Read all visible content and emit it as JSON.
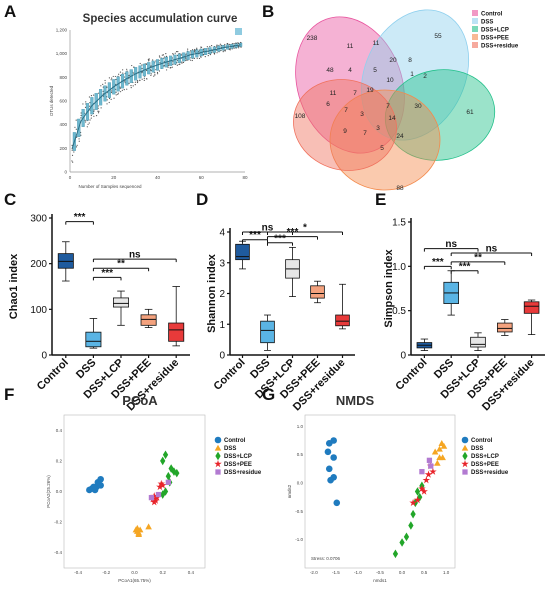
{
  "panel_labels": {
    "A": "A",
    "B": "B",
    "C": "C",
    "D": "D",
    "E": "E",
    "F": "F",
    "G": "G"
  },
  "colors": {
    "control": "#1f5b9e",
    "dss": "#5ab4e4",
    "lcp": "#e6e6e6",
    "pee": "#f4a27e",
    "residue": "#e83a3a",
    "venn_control": "#e8559f",
    "venn_dss": "#8fd0ee",
    "venn_lcp": "#22c08a",
    "venn_pee": "#f38a4c",
    "venn_residue": "#f0725e",
    "ord_control": "#1f7bbf",
    "ord_dss": "#f5a623",
    "ord_lcp": "#22a629",
    "ord_pee": "#e8232a",
    "ord_residue": "#b27ad1"
  },
  "chart_data": [
    {
      "id": "A",
      "type": "line",
      "title": "Species accumulation curve",
      "xlabel": "Number of Samples sequenced",
      "ylabel": "OTUs detected",
      "xlim": [
        0,
        80
      ],
      "ylim": [
        0,
        1200
      ],
      "xticks": [
        "0",
        "20",
        "40",
        "60",
        "80"
      ],
      "yticks": [
        "0",
        "200",
        "400",
        "600",
        "800",
        "1,000",
        "1,200"
      ],
      "x": [
        1,
        5,
        10,
        15,
        20,
        25,
        30,
        35,
        40,
        45,
        50,
        55,
        60,
        65,
        70,
        75,
        78
      ],
      "y": [
        200,
        430,
        560,
        650,
        720,
        780,
        830,
        870,
        905,
        935,
        960,
        990,
        1010,
        1030,
        1050,
        1065,
        1075
      ]
    },
    {
      "id": "B",
      "type": "venn",
      "sets": [
        "Control",
        "DSS",
        "DSS+LCP",
        "DSS+PEE",
        "DSS+residue"
      ],
      "regions": [
        "238",
        "55",
        "61",
        "88",
        "108",
        "11",
        "11",
        "20",
        "8",
        "1",
        "2",
        "48",
        "4",
        "5",
        "10",
        "30",
        "14",
        "24",
        "11",
        "7",
        "19",
        "6",
        "7",
        "3",
        "7",
        "3",
        "9",
        "7",
        "5"
      ]
    },
    {
      "id": "C",
      "type": "box",
      "ylabel": "Chao1 index",
      "ylim": [
        0,
        300
      ],
      "yticks": [
        "0",
        "100",
        "200",
        "300"
      ],
      "categories": [
        "Control",
        "DSS",
        "DSS+LCP",
        "DSS+PEE",
        "DSS+residue"
      ],
      "boxes": [
        {
          "min": 162,
          "q1": 190,
          "median": 205,
          "q3": 222,
          "max": 248
        },
        {
          "min": 15,
          "q1": 18,
          "median": 30,
          "q3": 50,
          "max": 80
        },
        {
          "min": 65,
          "q1": 105,
          "median": 113,
          "q3": 125,
          "max": 140
        },
        {
          "min": 60,
          "q1": 65,
          "median": 78,
          "q3": 88,
          "max": 100
        },
        {
          "min": 20,
          "q1": 30,
          "median": 55,
          "q3": 70,
          "max": 150
        }
      ],
      "significance": [
        {
          "from": 0,
          "to": 1,
          "label": "***",
          "value": 292
        },
        {
          "from": 1,
          "to": 2,
          "label": "***",
          "value": 170
        },
        {
          "from": 1,
          "to": 3,
          "label": "**",
          "value": 190
        },
        {
          "from": 1,
          "to": 4,
          "label": "ns",
          "value": 210
        }
      ]
    },
    {
      "id": "D",
      "type": "box",
      "ylabel": "Shannon index",
      "ylim": [
        0,
        4
      ],
      "yticks": [
        "0",
        "1",
        "2",
        "3",
        "4"
      ],
      "categories": [
        "Control",
        "DSS",
        "DSS+LCP",
        "DSS+PEE",
        "DSS+residue"
      ],
      "boxes": [
        {
          "min": 2.8,
          "q1": 3.1,
          "median": 3.2,
          "q3": 3.6,
          "max": 3.7
        },
        {
          "min": 0.15,
          "q1": 0.4,
          "median": 0.8,
          "q3": 1.1,
          "max": 1.3
        },
        {
          "min": 1.9,
          "q1": 2.5,
          "median": 2.8,
          "q3": 3.1,
          "max": 3.5
        },
        {
          "min": 1.7,
          "q1": 1.85,
          "median": 2.0,
          "q3": 2.25,
          "max": 2.4
        },
        {
          "min": 0.85,
          "q1": 0.95,
          "median": 1.1,
          "q3": 1.3,
          "max": 2.3
        }
      ],
      "significance": [
        {
          "from": 0,
          "to": 1,
          "label": "***",
          "value": 3.75
        },
        {
          "from": 1,
          "to": 2,
          "label": "***",
          "value": 3.65
        },
        {
          "from": 0,
          "to": 2,
          "label": "ns",
          "value": 4.0
        },
        {
          "from": 1,
          "to": 3,
          "label": "***",
          "value": 3.85
        },
        {
          "from": 1,
          "to": 4,
          "label": "*",
          "value": 4.0
        }
      ]
    },
    {
      "id": "E",
      "type": "box",
      "ylabel": "Simpson index",
      "ylim": [
        0,
        1.5
      ],
      "yticks": [
        "0",
        "0.5",
        "1.0",
        "1.5"
      ],
      "categories": [
        "Control",
        "DSS",
        "DSS+LCP",
        "DSS+PEE",
        "DSS+residue"
      ],
      "boxes": [
        {
          "min": 0.05,
          "q1": 0.08,
          "median": 0.11,
          "q3": 0.14,
          "max": 0.18
        },
        {
          "min": 0.45,
          "q1": 0.58,
          "median": 0.7,
          "q3": 0.82,
          "max": 0.95
        },
        {
          "min": 0.05,
          "q1": 0.09,
          "median": 0.12,
          "q3": 0.2,
          "max": 0.25
        },
        {
          "min": 0.22,
          "q1": 0.26,
          "median": 0.3,
          "q3": 0.36,
          "max": 0.4
        },
        {
          "min": 0.23,
          "q1": 0.47,
          "median": 0.55,
          "q3": 0.6,
          "max": 0.62
        }
      ],
      "significance": [
        {
          "from": 0,
          "to": 1,
          "label": "***",
          "value": 1.0
        },
        {
          "from": 1,
          "to": 2,
          "label": "***",
          "value": 0.95
        },
        {
          "from": 0,
          "to": 2,
          "label": "ns",
          "value": 1.2
        },
        {
          "from": 1,
          "to": 3,
          "label": "**",
          "value": 1.05
        },
        {
          "from": 1,
          "to": 4,
          "label": "ns",
          "value": 1.15
        }
      ]
    },
    {
      "id": "F",
      "type": "scatter",
      "title": "PCoA",
      "xlabel": "PCoA1(65.75%)",
      "ylabel": "PCoA2(25.26%)",
      "xlim": [
        -0.5,
        0.5
      ],
      "ylim": [
        -0.5,
        0.5
      ],
      "xticks": [
        "-0.4",
        "-0.2",
        "0.0",
        "0.2",
        "0.4"
      ],
      "yticks": [
        "-0.4",
        "-0.2",
        "0.0",
        "0.2",
        "0.4"
      ],
      "series": [
        {
          "name": "Control",
          "marker": "circle",
          "points": [
            [
              -0.32,
              0.01
            ],
            [
              -0.3,
              0.02
            ],
            [
              -0.28,
              0.01
            ],
            [
              -0.27,
              0.03
            ],
            [
              -0.26,
              0.06
            ],
            [
              -0.24,
              0.08
            ],
            [
              -0.24,
              0.04
            ],
            [
              -0.29,
              0.03
            ]
          ]
        },
        {
          "name": "DSS",
          "marker": "triangle",
          "points": [
            [
              0.01,
              -0.25
            ],
            [
              0.02,
              -0.26
            ],
            [
              0.03,
              -0.27
            ],
            [
              0.02,
              -0.24
            ],
            [
              0.04,
              -0.25
            ],
            [
              0.1,
              -0.23
            ],
            [
              0.03,
              -0.28
            ]
          ]
        },
        {
          "name": "DSS+LCP",
          "marker": "diamond",
          "points": [
            [
              0.2,
              0.2
            ],
            [
              0.22,
              0.24
            ],
            [
              0.24,
              0.1
            ],
            [
              0.26,
              0.15
            ],
            [
              0.28,
              0.13
            ],
            [
              0.3,
              0.12
            ],
            [
              0.25,
              0.06
            ],
            [
              0.22,
              0.0
            ],
            [
              0.2,
              -0.02
            ]
          ]
        },
        {
          "name": "DSS+PEE",
          "marker": "star",
          "points": [
            [
              0.13,
              -0.05
            ],
            [
              0.14,
              -0.07
            ],
            [
              0.15,
              -0.06
            ],
            [
              0.16,
              -0.04
            ],
            [
              0.14,
              -0.03
            ],
            [
              0.18,
              0.03
            ],
            [
              0.19,
              0.05
            ],
            [
              0.2,
              0.04
            ]
          ]
        },
        {
          "name": "DSS+residue",
          "marker": "square",
          "points": [
            [
              0.12,
              -0.04
            ],
            [
              0.17,
              -0.02
            ],
            [
              0.24,
              0.06
            ]
          ]
        }
      ]
    },
    {
      "id": "G",
      "type": "scatter",
      "title": "NMDS",
      "xlabel": "nmds1",
      "ylabel": "nmds2",
      "annotation": "Stress: 0.0706",
      "xlim": [
        -2.2,
        1.2
      ],
      "ylim": [
        -1.5,
        1.2
      ],
      "xticks": [
        "-2.0",
        "-1.5",
        "-1.0",
        "-0.5",
        "0.0",
        "0.5",
        "1.0"
      ],
      "yticks": [
        "-1.0",
        "-0.5",
        "0.0",
        "0.5",
        "1.0"
      ],
      "series": [
        {
          "name": "Control",
          "marker": "circle",
          "points": [
            [
              -1.65,
              0.7
            ],
            [
              -1.55,
              0.75
            ],
            [
              -1.68,
              0.55
            ],
            [
              -1.55,
              0.45
            ],
            [
              -1.65,
              0.25
            ],
            [
              -1.55,
              0.1
            ],
            [
              -1.62,
              0.05
            ],
            [
              -1.48,
              -0.35
            ]
          ]
        },
        {
          "name": "DSS",
          "marker": "triangle",
          "points": [
            [
              0.75,
              0.55
            ],
            [
              0.85,
              0.6
            ],
            [
              0.9,
              0.7
            ],
            [
              0.95,
              0.65
            ],
            [
              0.85,
              0.45
            ],
            [
              0.92,
              0.45
            ],
            [
              0.8,
              0.35
            ]
          ]
        },
        {
          "name": "DSS+LCP",
          "marker": "diamond",
          "points": [
            [
              -0.15,
              -1.25
            ],
            [
              0.0,
              -1.05
            ],
            [
              0.1,
              -0.95
            ],
            [
              0.2,
              -0.75
            ],
            [
              0.25,
              -0.55
            ],
            [
              0.3,
              -0.35
            ],
            [
              0.4,
              -0.25
            ],
            [
              0.35,
              -0.15
            ],
            [
              0.45,
              -0.05
            ]
          ]
        },
        {
          "name": "DSS+PEE",
          "marker": "star",
          "points": [
            [
              0.25,
              -0.35
            ],
            [
              0.35,
              -0.3
            ],
            [
              0.45,
              -0.1
            ],
            [
              0.5,
              -0.15
            ],
            [
              0.55,
              0.05
            ],
            [
              0.6,
              0.15
            ],
            [
              0.7,
              0.2
            ],
            [
              0.65,
              0.3
            ]
          ]
        },
        {
          "name": "DSS+residue",
          "marker": "square",
          "points": [
            [
              0.45,
              0.2
            ],
            [
              0.62,
              0.4
            ],
            [
              0.65,
              0.3
            ]
          ]
        }
      ]
    }
  ]
}
